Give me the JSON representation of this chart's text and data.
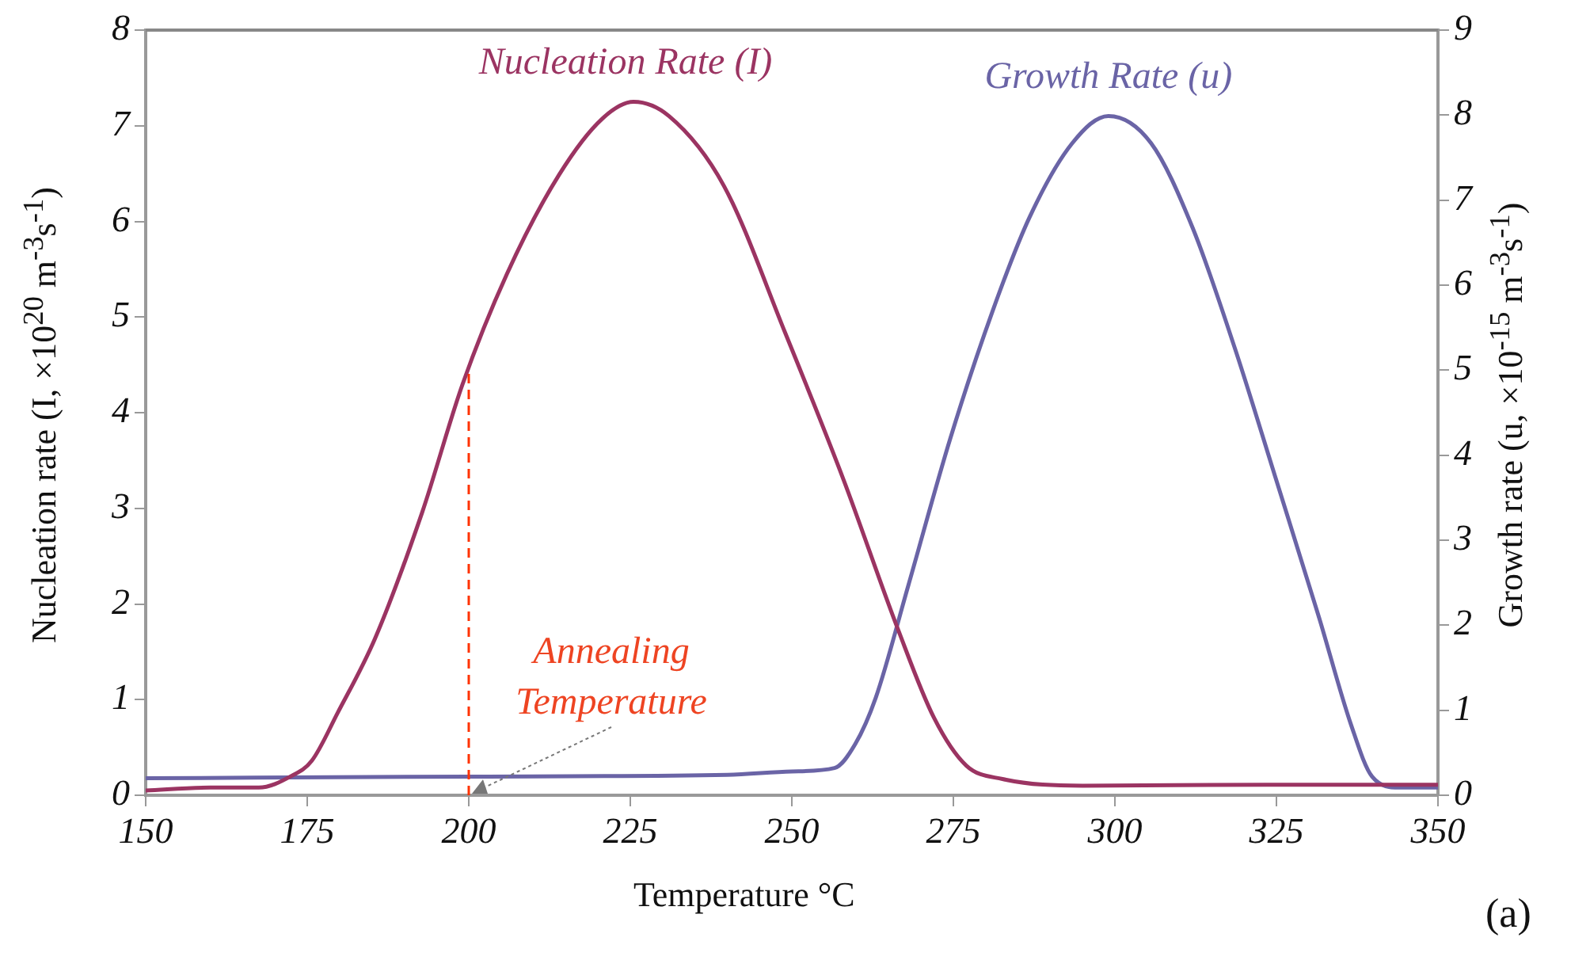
{
  "chart_data": {
    "type": "line",
    "xlabel": "Temperature  °C",
    "ylabel": "Nucleation rate (I, ×10$^{20}$ m$^{-3}$s$^{-1}$)",
    "y2label": "Growth rate (u, ×10$^{-15}$ m$^{-3}$s$^{-1}$)",
    "xlim": [
      150,
      350
    ],
    "xticks": [
      150,
      175,
      200,
      225,
      250,
      275,
      300,
      325,
      350
    ],
    "ylim": [
      0,
      8
    ],
    "yticks": [
      0,
      1,
      2,
      3,
      4,
      5,
      6,
      7,
      8
    ],
    "y2lim": [
      0,
      9
    ],
    "y2ticks": [
      0,
      1,
      2,
      3,
      4,
      5,
      6,
      7,
      8,
      9
    ],
    "grid": false,
    "legend": false,
    "marker": "none",
    "line_style": "solid",
    "series": [
      {
        "name": "Nucleation Rate (I)",
        "color": "#9b3462",
        "x": [
          150,
          160,
          167.5,
          172.5,
          175.7,
          179.7,
          185.5,
          192.8,
          199,
          205.9,
          214,
          220.6,
          225.5,
          231,
          239.5,
          249,
          258,
          266.4,
          272,
          277,
          282.6,
          295,
          323.5,
          346,
          350
        ],
        "values": [
          0.05,
          0.08,
          0.08,
          0.2,
          0.36,
          0.86,
          1.64,
          2.96,
          4.29,
          5.45,
          6.49,
          7.07,
          7.25,
          7.1,
          6.37,
          4.83,
          3.3,
          1.74,
          0.81,
          0.31,
          0.17,
          0.1,
          0.11,
          0.11,
          0.11
        ]
      },
      {
        "name": "Growth Rate (u)",
        "color": "#6a64a6",
        "axis": "y2",
        "x": [
          150,
          200,
          240,
          250,
          256.6,
          259.8,
          263,
          268,
          274.5,
          281,
          286.8,
          293.4,
          299,
          305.6,
          312,
          318.6,
          325,
          331.6,
          336.5,
          339.8,
          344,
          350
        ],
        "values": [
          0.2,
          0.22,
          0.24,
          0.28,
          0.32,
          0.6,
          1.15,
          2.46,
          4.19,
          5.68,
          6.8,
          7.67,
          7.99,
          7.67,
          6.68,
          5.25,
          3.7,
          2.09,
          0.84,
          0.22,
          0.09,
          0.09
        ]
      }
    ],
    "ref_lines": [
      {
        "axis": "x",
        "value": 200,
        "color": "#ff3300",
        "line_style": "dashed"
      }
    ],
    "annotations": [
      {
        "text": "Annealing Temperature",
        "x": 200,
        "y": 0
      },
      "(a)"
    ]
  }
}
